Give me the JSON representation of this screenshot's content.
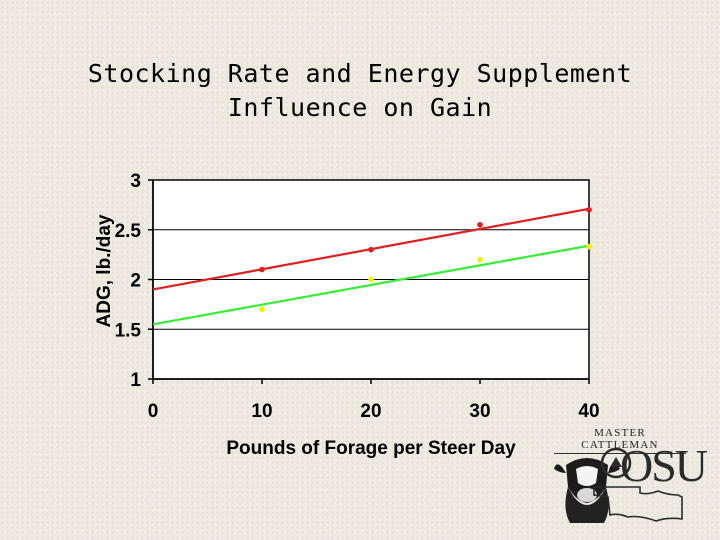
{
  "title": {
    "line1": "Stocking Rate and Energy Supplement",
    "line2": "Influence on Gain"
  },
  "chart_data": {
    "type": "scatter",
    "title": "Stocking Rate and Energy Supplement Influence on Gain",
    "xlabel": "Pounds of Forage per Steer Day",
    "ylabel": "ADG, lb./day",
    "xlim": [
      0,
      40
    ],
    "ylim": [
      1,
      3
    ],
    "xticks": [
      "0",
      "10",
      "20",
      "30",
      "40"
    ],
    "yticks": [
      "1",
      "1.5",
      "2",
      "2.5",
      "3"
    ],
    "grid": true,
    "series": [
      {
        "name": "red",
        "color": "#e02020",
        "x": [
          10,
          20,
          30,
          40
        ],
        "y": [
          2.1,
          2.3,
          2.55,
          2.7
        ],
        "trend": [
          [
            0,
            1.9
          ],
          [
            40,
            2.71
          ]
        ]
      },
      {
        "name": "green",
        "color": "#33ee33",
        "marker_color": "#f2f200",
        "x": [
          10,
          20,
          30,
          40
        ],
        "y": [
          1.7,
          2.0,
          2.2,
          2.33
        ],
        "trend": [
          [
            0,
            1.55
          ],
          [
            40,
            2.34
          ]
        ]
      }
    ]
  },
  "logo": {
    "top_text": "MASTER CATTLEMAN",
    "osu_text": "OSU"
  }
}
